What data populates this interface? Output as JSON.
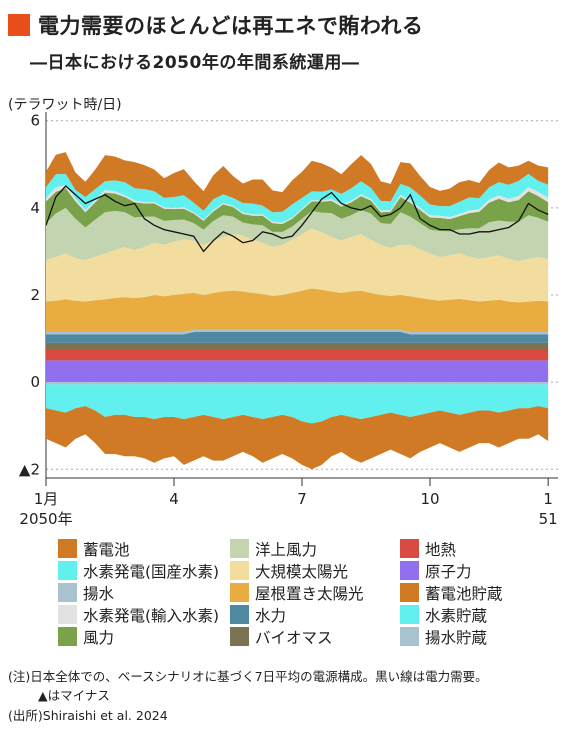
{
  "header": {
    "title": "電力需要のほとんどは再エネで賄われる",
    "subtitle": "―日本における2050年の年間系統運用―"
  },
  "chart_data": {
    "type": "area",
    "ylabel": "(テラワット時/日)",
    "ylim": [
      -2.2,
      6.2
    ],
    "yticks": [
      {
        "value": 6,
        "label": "6"
      },
      {
        "value": 4,
        "label": "4"
      },
      {
        "value": 2,
        "label": "2"
      },
      {
        "value": 0,
        "label": "0"
      },
      {
        "value": -2,
        "label": "▲2"
      }
    ],
    "xlim": [
      1,
      53
    ],
    "xticks": [
      {
        "week": 1,
        "label": "1月",
        "sublabel": "2050年"
      },
      {
        "week": 14,
        "label": "4",
        "sublabel": ""
      },
      {
        "week": 27,
        "label": "7",
        "sublabel": ""
      },
      {
        "week": 40,
        "label": "10",
        "sublabel": ""
      },
      {
        "week": 52,
        "label": "1",
        "sublabel": "51"
      }
    ],
    "x_weeks": [
      1,
      2,
      3,
      4,
      5,
      6,
      7,
      8,
      9,
      10,
      11,
      12,
      13,
      14,
      15,
      16,
      17,
      18,
      19,
      20,
      21,
      22,
      23,
      24,
      25,
      26,
      27,
      28,
      29,
      30,
      31,
      32,
      33,
      34,
      35,
      36,
      37,
      38,
      39,
      40,
      41,
      42,
      43,
      44,
      45,
      46,
      47,
      48,
      49,
      50,
      51,
      52
    ],
    "positive_series": [
      {
        "name": "原子力",
        "values": [
          0.5,
          0.5,
          0.5,
          0.5,
          0.5,
          0.5,
          0.5,
          0.5,
          0.5,
          0.5,
          0.5,
          0.5,
          0.5,
          0.5,
          0.5,
          0.5,
          0.5,
          0.5,
          0.5,
          0.5,
          0.5,
          0.5,
          0.5,
          0.5,
          0.5,
          0.5,
          0.5,
          0.5,
          0.5,
          0.5,
          0.5,
          0.5,
          0.5,
          0.5,
          0.5,
          0.5,
          0.5,
          0.5,
          0.5,
          0.5,
          0.5,
          0.5,
          0.5,
          0.5,
          0.5,
          0.5,
          0.5,
          0.5,
          0.5,
          0.5,
          0.5,
          0.5
        ]
      },
      {
        "name": "地熱",
        "values": [
          0.25,
          0.25,
          0.25,
          0.25,
          0.25,
          0.25,
          0.25,
          0.25,
          0.25,
          0.25,
          0.25,
          0.25,
          0.25,
          0.25,
          0.25,
          0.25,
          0.25,
          0.25,
          0.25,
          0.25,
          0.25,
          0.25,
          0.25,
          0.25,
          0.25,
          0.25,
          0.25,
          0.25,
          0.25,
          0.25,
          0.25,
          0.25,
          0.25,
          0.25,
          0.25,
          0.25,
          0.25,
          0.25,
          0.25,
          0.25,
          0.25,
          0.25,
          0.25,
          0.25,
          0.25,
          0.25,
          0.25,
          0.25,
          0.25,
          0.25,
          0.25,
          0.25
        ]
      },
      {
        "name": "バイオマス",
        "values": [
          0.15,
          0.15,
          0.15,
          0.15,
          0.15,
          0.15,
          0.15,
          0.15,
          0.15,
          0.15,
          0.15,
          0.15,
          0.15,
          0.15,
          0.15,
          0.15,
          0.15,
          0.15,
          0.15,
          0.15,
          0.15,
          0.15,
          0.15,
          0.15,
          0.15,
          0.15,
          0.15,
          0.15,
          0.15,
          0.15,
          0.15,
          0.15,
          0.15,
          0.15,
          0.15,
          0.15,
          0.15,
          0.15,
          0.15,
          0.15,
          0.15,
          0.15,
          0.15,
          0.15,
          0.15,
          0.15,
          0.15,
          0.15,
          0.15,
          0.15,
          0.15,
          0.15
        ]
      },
      {
        "name": "水力",
        "values": [
          0.2,
          0.2,
          0.2,
          0.2,
          0.2,
          0.2,
          0.2,
          0.2,
          0.2,
          0.2,
          0.2,
          0.2,
          0.2,
          0.2,
          0.2,
          0.25,
          0.25,
          0.25,
          0.25,
          0.25,
          0.25,
          0.25,
          0.25,
          0.25,
          0.25,
          0.25,
          0.25,
          0.25,
          0.25,
          0.25,
          0.25,
          0.25,
          0.25,
          0.25,
          0.25,
          0.25,
          0.25,
          0.2,
          0.2,
          0.2,
          0.2,
          0.2,
          0.2,
          0.2,
          0.2,
          0.2,
          0.2,
          0.2,
          0.2,
          0.2,
          0.2,
          0.2
        ]
      },
      {
        "name": "揚水",
        "values": [
          0.05,
          0.05,
          0.05,
          0.05,
          0.05,
          0.05,
          0.05,
          0.05,
          0.05,
          0.05,
          0.05,
          0.05,
          0.05,
          0.05,
          0.05,
          0.05,
          0.05,
          0.05,
          0.05,
          0.05,
          0.05,
          0.05,
          0.05,
          0.05,
          0.05,
          0.05,
          0.05,
          0.05,
          0.05,
          0.05,
          0.05,
          0.05,
          0.05,
          0.05,
          0.05,
          0.05,
          0.05,
          0.05,
          0.05,
          0.05,
          0.05,
          0.05,
          0.05,
          0.05,
          0.05,
          0.05,
          0.05,
          0.05,
          0.05,
          0.05,
          0.05,
          0.05
        ]
      },
      {
        "name": "屋根置き太陽光",
        "values": [
          0.7,
          0.72,
          0.75,
          0.72,
          0.7,
          0.73,
          0.75,
          0.78,
          0.8,
          0.78,
          0.8,
          0.85,
          0.82,
          0.85,
          0.88,
          0.85,
          0.8,
          0.85,
          0.88,
          0.9,
          0.88,
          0.85,
          0.82,
          0.78,
          0.8,
          0.85,
          0.9,
          0.95,
          0.92,
          0.88,
          0.85,
          0.88,
          0.9,
          0.85,
          0.8,
          0.78,
          0.8,
          0.82,
          0.78,
          0.75,
          0.72,
          0.74,
          0.76,
          0.73,
          0.7,
          0.72,
          0.74,
          0.7,
          0.68,
          0.7,
          0.72,
          0.7
        ]
      },
      {
        "name": "大規模太陽光",
        "values": [
          0.95,
          1.0,
          1.05,
          0.98,
          0.95,
          1.0,
          1.05,
          1.1,
          1.15,
          1.1,
          1.15,
          1.2,
          1.18,
          1.22,
          1.25,
          1.2,
          1.15,
          1.2,
          1.25,
          1.3,
          1.28,
          1.22,
          1.18,
          1.12,
          1.15,
          1.22,
          1.3,
          1.38,
          1.32,
          1.25,
          1.2,
          1.25,
          1.3,
          1.22,
          1.15,
          1.1,
          1.15,
          1.18,
          1.12,
          1.05,
          1.0,
          1.02,
          1.05,
          1.0,
          0.98,
          1.0,
          1.02,
          0.98,
          0.95,
          0.98,
          1.0,
          0.98
        ]
      },
      {
        "name": "洋上風力",
        "values": [
          0.85,
          1.0,
          1.05,
          0.9,
          0.75,
          0.85,
          0.95,
          0.9,
          0.8,
          0.75,
          0.7,
          0.6,
          0.55,
          0.5,
          0.45,
          0.4,
          0.35,
          0.45,
          0.5,
          0.4,
          0.3,
          0.35,
          0.4,
          0.35,
          0.3,
          0.3,
          0.35,
          0.4,
          0.45,
          0.55,
          0.5,
          0.5,
          0.55,
          0.6,
          0.5,
          0.55,
          0.75,
          0.65,
          0.6,
          0.55,
          0.6,
          0.55,
          0.55,
          0.65,
          0.7,
          0.8,
          0.8,
          0.85,
          0.9,
          1.0,
          0.9,
          0.85
        ]
      },
      {
        "name": "風力",
        "values": [
          0.5,
          0.5,
          0.45,
          0.4,
          0.35,
          0.4,
          0.45,
          0.4,
          0.35,
          0.35,
          0.3,
          0.3,
          0.28,
          0.25,
          0.25,
          0.22,
          0.2,
          0.22,
          0.25,
          0.22,
          0.2,
          0.2,
          0.22,
          0.2,
          0.18,
          0.18,
          0.2,
          0.22,
          0.25,
          0.28,
          0.28,
          0.3,
          0.32,
          0.3,
          0.25,
          0.28,
          0.35,
          0.32,
          0.3,
          0.28,
          0.3,
          0.28,
          0.3,
          0.35,
          0.38,
          0.45,
          0.5,
          0.45,
          0.5,
          0.55,
          0.5,
          0.45
        ]
      },
      {
        "name": "水素発電(輸入水素)",
        "values": [
          0.08,
          0.1,
          0.08,
          0.06,
          0.05,
          0.05,
          0.06,
          0.05,
          0.04,
          0.04,
          0.03,
          0.03,
          0.03,
          0.03,
          0.03,
          0.03,
          0.03,
          0.03,
          0.03,
          0.03,
          0.03,
          0.03,
          0.03,
          0.03,
          0.03,
          0.03,
          0.03,
          0.03,
          0.03,
          0.04,
          0.04,
          0.04,
          0.04,
          0.04,
          0.04,
          0.04,
          0.05,
          0.05,
          0.05,
          0.05,
          0.05,
          0.05,
          0.05,
          0.06,
          0.06,
          0.07,
          0.08,
          0.08,
          0.09,
          0.1,
          0.1,
          0.1
        ]
      },
      {
        "name": "水素発電(国産水素)",
        "values": [
          0.25,
          0.3,
          0.25,
          0.2,
          0.3,
          0.25,
          0.2,
          0.25,
          0.3,
          0.28,
          0.3,
          0.25,
          0.22,
          0.25,
          0.28,
          0.22,
          0.2,
          0.25,
          0.2,
          0.18,
          0.22,
          0.25,
          0.2,
          0.22,
          0.25,
          0.3,
          0.25,
          0.2,
          0.2,
          0.22,
          0.25,
          0.28,
          0.3,
          0.25,
          0.22,
          0.2,
          0.25,
          0.3,
          0.28,
          0.25,
          0.22,
          0.25,
          0.28,
          0.3,
          0.25,
          0.28,
          0.3,
          0.32,
          0.35,
          0.3,
          0.25,
          0.3
        ]
      },
      {
        "name": "蓄電池",
        "values": [
          0.35,
          0.45,
          0.5,
          0.4,
          0.35,
          0.45,
          0.6,
          0.55,
          0.5,
          0.6,
          0.55,
          0.5,
          0.45,
          0.55,
          0.6,
          0.5,
          0.45,
          0.55,
          0.65,
          0.5,
          0.45,
          0.55,
          0.6,
          0.5,
          0.45,
          0.55,
          0.6,
          0.7,
          0.65,
          0.5,
          0.45,
          0.55,
          0.6,
          0.55,
          0.45,
          0.4,
          0.5,
          0.55,
          0.45,
          0.4,
          0.35,
          0.4,
          0.45,
          0.4,
          0.35,
          0.4,
          0.45,
          0.4,
          0.35,
          0.3,
          0.35,
          0.4
        ]
      }
    ],
    "negative_series": [
      {
        "name": "揚水貯蔵",
        "values": [
          0.05,
          0.05,
          0.05,
          0.05,
          0.05,
          0.05,
          0.05,
          0.05,
          0.05,
          0.05,
          0.05,
          0.05,
          0.05,
          0.05,
          0.05,
          0.05,
          0.05,
          0.05,
          0.05,
          0.05,
          0.05,
          0.05,
          0.05,
          0.05,
          0.05,
          0.05,
          0.05,
          0.05,
          0.05,
          0.05,
          0.05,
          0.05,
          0.05,
          0.05,
          0.05,
          0.05,
          0.05,
          0.05,
          0.05,
          0.05,
          0.05,
          0.05,
          0.05,
          0.05,
          0.05,
          0.05,
          0.05,
          0.05,
          0.05,
          0.05,
          0.05,
          0.05
        ]
      },
      {
        "name": "水素貯蔵",
        "values": [
          0.55,
          0.6,
          0.65,
          0.55,
          0.5,
          0.6,
          0.75,
          0.7,
          0.7,
          0.75,
          0.75,
          0.8,
          0.75,
          0.75,
          0.8,
          0.75,
          0.7,
          0.75,
          0.8,
          0.75,
          0.7,
          0.75,
          0.8,
          0.75,
          0.7,
          0.75,
          0.85,
          0.9,
          0.85,
          0.75,
          0.7,
          0.75,
          0.8,
          0.75,
          0.7,
          0.65,
          0.7,
          0.75,
          0.7,
          0.65,
          0.6,
          0.65,
          0.7,
          0.65,
          0.6,
          0.6,
          0.65,
          0.6,
          0.55,
          0.55,
          0.5,
          0.55
        ]
      },
      {
        "name": "蓄電池貯蔵",
        "values": [
          0.7,
          0.75,
          0.8,
          0.7,
          0.65,
          0.75,
          0.85,
          0.9,
          0.95,
          0.9,
          0.95,
          1.0,
          0.95,
          0.9,
          1.05,
          1.0,
          0.95,
          1.0,
          0.95,
          0.9,
          0.85,
          0.9,
          1.0,
          0.95,
          0.9,
          0.95,
          1.0,
          1.05,
          1.0,
          0.9,
          0.85,
          0.95,
          1.0,
          0.95,
          0.9,
          0.85,
          0.9,
          0.95,
          0.85,
          0.8,
          0.75,
          0.8,
          0.85,
          0.8,
          0.75,
          0.75,
          0.8,
          0.75,
          0.7,
          0.7,
          0.65,
          0.75
        ]
      }
    ],
    "demand_line": {
      "name": "電力需要",
      "values": [
        3.6,
        4.25,
        4.5,
        4.3,
        4.1,
        4.2,
        4.3,
        4.15,
        4.05,
        4.1,
        3.75,
        3.6,
        3.5,
        3.45,
        3.4,
        3.35,
        3.0,
        3.25,
        3.45,
        3.35,
        3.2,
        3.25,
        3.45,
        3.4,
        3.3,
        3.35,
        3.6,
        3.9,
        4.2,
        4.35,
        4.1,
        4.0,
        3.95,
        4.05,
        3.8,
        3.85,
        4.0,
        4.3,
        3.75,
        3.6,
        3.5,
        3.5,
        3.4,
        3.4,
        3.45,
        3.45,
        3.5,
        3.55,
        3.7,
        4.1,
        3.95,
        3.85
      ]
    }
  },
  "colors": {
    "蓄電池": "#d07a25",
    "水素発電(国産水素)": "#62f0ef",
    "揚水": "#a8c2d0",
    "水素発電(輸入水素)": "#e2e2e2",
    "風力": "#7aa24a",
    "洋上風力": "#c2d5b0",
    "大規模太陽光": "#f2dc9e",
    "屋根置き太陽光": "#e8ac40",
    "水力": "#4e88a2",
    "バイオマス": "#7b7352",
    "地熱": "#d94a40",
    "原子力": "#9070ee",
    "蓄電池貯蔵": "#d07a25",
    "水素貯蔵": "#62f0ef",
    "揚水貯蔵": "#a8c2d0",
    "title_square": "#e94e1b"
  },
  "legend": {
    "items": [
      {
        "label": "蓄電池",
        "color": "#d07a25"
      },
      {
        "label": "洋上風力",
        "color": "#c2d5b0"
      },
      {
        "label": "地熱",
        "color": "#d94a40"
      },
      {
        "label": "水素発電(国産水素)",
        "color": "#62f0ef"
      },
      {
        "label": "大規模太陽光",
        "color": "#f2dc9e"
      },
      {
        "label": "原子力",
        "color": "#9070ee"
      },
      {
        "label": "揚水",
        "color": "#a8c2d0"
      },
      {
        "label": "屋根置き太陽光",
        "color": "#e8ac40"
      },
      {
        "label": "蓄電池貯蔵",
        "color": "#d07a25"
      },
      {
        "label": "水素発電(輸入水素)",
        "color": "#e2e2e2"
      },
      {
        "label": "水力",
        "color": "#4e88a2"
      },
      {
        "label": "水素貯蔵",
        "color": "#62f0ef"
      },
      {
        "label": "風力",
        "color": "#7aa24a"
      },
      {
        "label": "バイオマス",
        "color": "#7b7352"
      },
      {
        "label": "揚水貯蔵",
        "color": "#a8c2d0"
      }
    ]
  },
  "notes": {
    "note1": "(注)日本全体での、ベースシナリオに基づく7日平均の電源構成。黒い線は電力需要。",
    "note2": "▲はマイナス",
    "source": "(出所)Shiraishi et al. 2024"
  }
}
